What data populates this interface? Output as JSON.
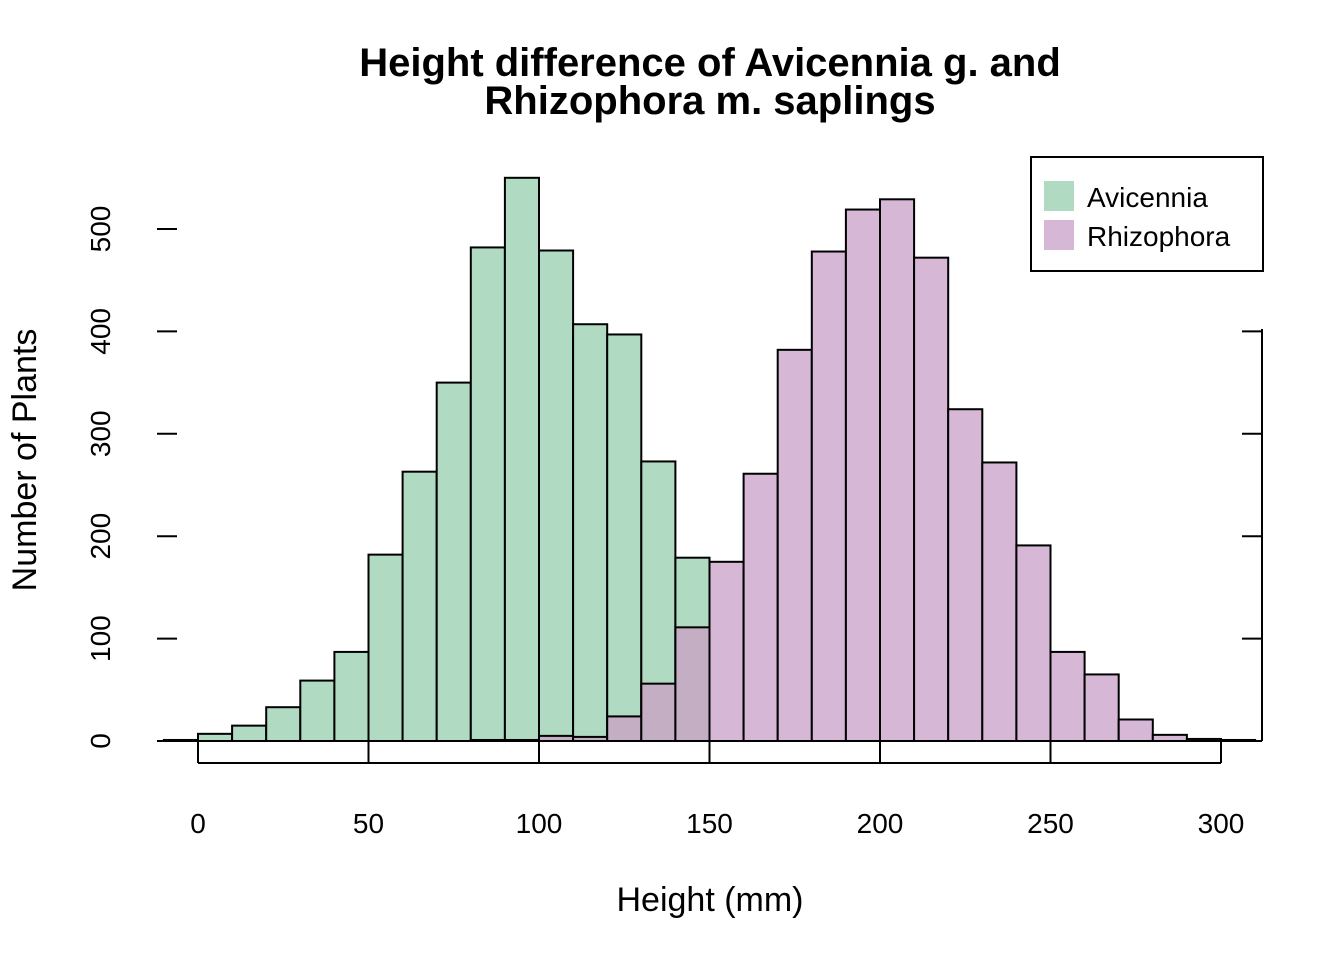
{
  "colors": {
    "avicennia": "#b0dbc2",
    "rhizophora": "#d6b8d6",
    "overlap": "#c3aec4"
  },
  "chart_data": {
    "type": "bar",
    "histogram": true,
    "title_lines": [
      "Height difference of Avicennia g. and",
      "Rhizophora m. saplings"
    ],
    "xlabel": "Height (mm)",
    "ylabel": "Number of Plants",
    "xlim": [
      -10,
      310
    ],
    "ylim": [
      0,
      550
    ],
    "x_ticks": [
      0,
      50,
      100,
      150,
      200,
      250,
      300
    ],
    "y_ticks": [
      0,
      100,
      200,
      300,
      400,
      500
    ],
    "bin_width": 10,
    "legend": {
      "position": "top-right",
      "entries": [
        "Avicennia",
        "Rhizophora"
      ]
    },
    "series": [
      {
        "name": "Avicennia",
        "bin_starts": [
          -10,
          0,
          10,
          20,
          30,
          40,
          50,
          60,
          70,
          80,
          90,
          100,
          110,
          120,
          130,
          140
        ],
        "counts": [
          1,
          7,
          15,
          33,
          59,
          87,
          182,
          263,
          350,
          482,
          550,
          479,
          407,
          397,
          273,
          179
        ]
      },
      {
        "name": "Rhizophora",
        "bin_starts": [
          80,
          90,
          100,
          110,
          120,
          130,
          140,
          150,
          160,
          170,
          180,
          190,
          200,
          210,
          220,
          230,
          240,
          250,
          260,
          270,
          280,
          290,
          300
        ],
        "counts": [
          1,
          1,
          5,
          4,
          24,
          56,
          111,
          175,
          261,
          382,
          478,
          519,
          529,
          472,
          324,
          272,
          191,
          87,
          65,
          21,
          6,
          2,
          1
        ]
      }
    ]
  }
}
